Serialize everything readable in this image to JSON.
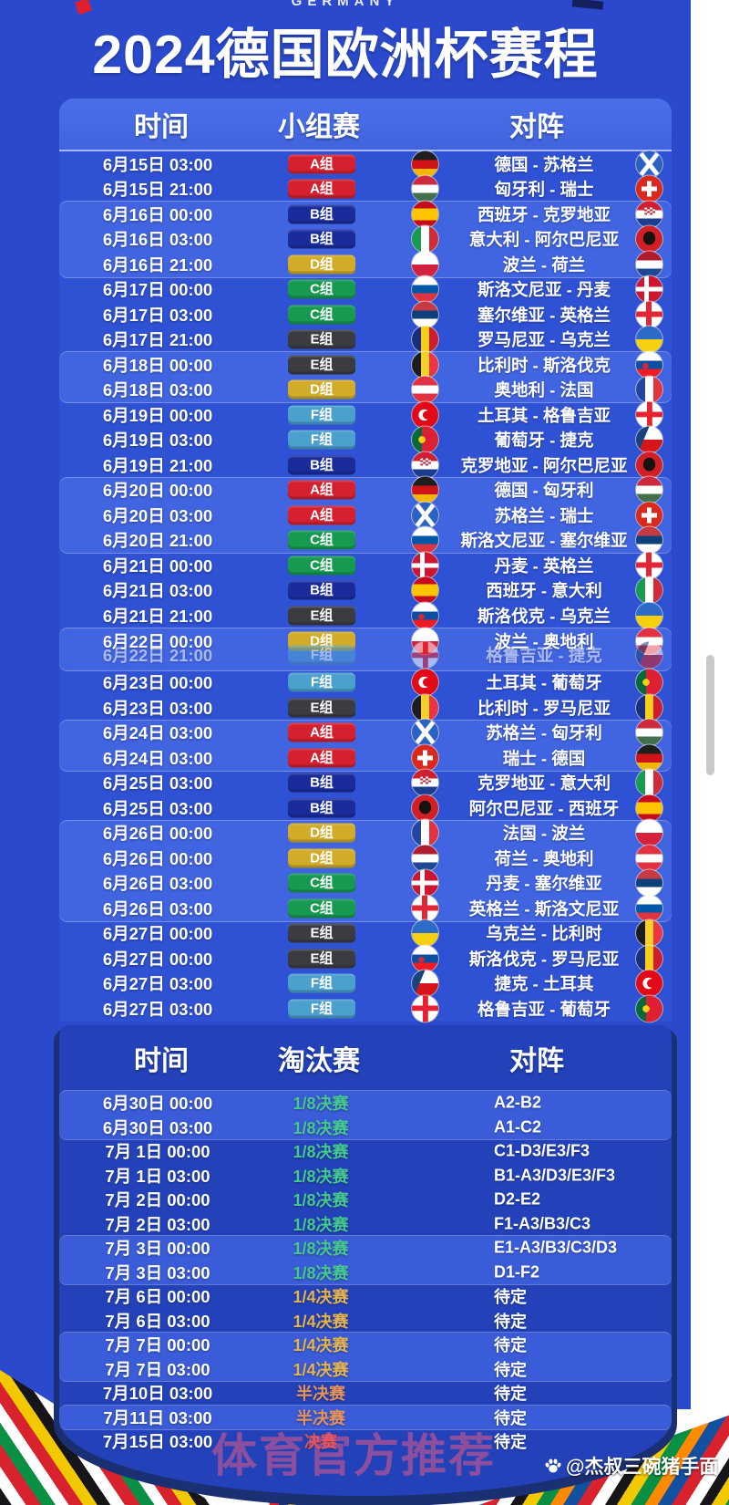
{
  "page": {
    "top_label": "GERMANY",
    "title": "2024德国欧洲杯赛程"
  },
  "theme": {
    "page_bg": "#2A49CC",
    "group_panel_bg": "#2F51D3",
    "light_band": "#4164E0",
    "header_panel": "#4A6FE8",
    "knockout_bg": "#2342BA",
    "knockout_light_band": "#3A5CD8",
    "navy_arc": "#1B2F73",
    "scrollbar": "#C9C9C9",
    "watermark_pink": "#F65C81"
  },
  "group_stage": {
    "headers": [
      "时间",
      "小组赛",
      "对阵"
    ],
    "group_colors": {
      "A组": "#D6202F",
      "B组": "#1A2C9B",
      "C组": "#169A4F",
      "D组": "#D2AC28",
      "E组": "#3A3C42",
      "F组": "#4BA0CE"
    },
    "matches": [
      {
        "time": "6月15日 03:00",
        "group": "A组",
        "match": "德国 - 苏格兰",
        "home_flag": "de",
        "away_flag": "sco",
        "band": "dark"
      },
      {
        "time": "6月15日 21:00",
        "group": "A组",
        "match": "匈牙利 - 瑞士",
        "home_flag": "hu",
        "away_flag": "ch",
        "band": "dark"
      },
      {
        "time": "6月16日 00:00",
        "group": "B组",
        "match": "西班牙 - 克罗地亚",
        "home_flag": "es",
        "away_flag": "hr",
        "band": "light"
      },
      {
        "time": "6月16日 03:00",
        "group": "B组",
        "match": "意大利 - 阿尔巴尼亚",
        "home_flag": "it",
        "away_flag": "al",
        "band": "light"
      },
      {
        "time": "6月16日 21:00",
        "group": "D组",
        "match": "波兰 - 荷兰",
        "home_flag": "pl",
        "away_flag": "nl",
        "band": "light"
      },
      {
        "time": "6月17日 00:00",
        "group": "C组",
        "match": "斯洛文尼亚 - 丹麦",
        "home_flag": "si",
        "away_flag": "dk",
        "band": "dark"
      },
      {
        "time": "6月17日 03:00",
        "group": "C组",
        "match": "塞尔维亚 - 英格兰",
        "home_flag": "rs",
        "away_flag": "en",
        "band": "dark"
      },
      {
        "time": "6月17日 21:00",
        "group": "E组",
        "match": "罗马尼亚 - 乌克兰",
        "home_flag": "ro",
        "away_flag": "ua",
        "band": "dark"
      },
      {
        "time": "6月18日 00:00",
        "group": "E组",
        "match": "比利时 - 斯洛伐克",
        "home_flag": "be",
        "away_flag": "sk",
        "band": "light"
      },
      {
        "time": "6月18日 03:00",
        "group": "D组",
        "match": "奥地利 - 法国",
        "home_flag": "at",
        "away_flag": "fr",
        "band": "light"
      },
      {
        "time": "6月19日 00:00",
        "group": "F组",
        "match": "土耳其 - 格鲁吉亚",
        "home_flag": "tr",
        "away_flag": "ge",
        "band": "dark"
      },
      {
        "time": "6月19日 03:00",
        "group": "F组",
        "match": "葡萄牙 - 捷克",
        "home_flag": "pt",
        "away_flag": "cz",
        "band": "dark"
      },
      {
        "time": "6月19日 21:00",
        "group": "B组",
        "match": "克罗地亚 - 阿尔巴尼亚",
        "home_flag": "hr",
        "away_flag": "al",
        "band": "dark"
      },
      {
        "time": "6月20日 00:00",
        "group": "A组",
        "match": "德国 - 匈牙利",
        "home_flag": "de",
        "away_flag": "hu",
        "band": "light"
      },
      {
        "time": "6月20日 03:00",
        "group": "A组",
        "match": "苏格兰 - 瑞士",
        "home_flag": "sco",
        "away_flag": "ch",
        "band": "light"
      },
      {
        "time": "6月20日 21:00",
        "group": "C组",
        "match": "斯洛文尼亚 - 塞尔维亚",
        "home_flag": "si",
        "away_flag": "rs",
        "band": "light"
      },
      {
        "time": "6月21日 00:00",
        "group": "C组",
        "match": "丹麦 - 英格兰",
        "home_flag": "dk",
        "away_flag": "en",
        "band": "dark"
      },
      {
        "time": "6月21日 03:00",
        "group": "B组",
        "match": "西班牙 - 意大利",
        "home_flag": "es",
        "away_flag": "it",
        "band": "dark"
      },
      {
        "time": "6月21日 21:00",
        "group": "E组",
        "match": "斯洛伐克 - 乌克兰",
        "home_flag": "sk",
        "away_flag": "ua",
        "band": "dark"
      },
      {
        "band": "light",
        "glitch": true,
        "main": {
          "time": "6月22日 00:00",
          "group": "D组",
          "match": "波兰 - 奥地利",
          "home_flag": "pl",
          "away_flag": "at"
        },
        "ghost": {
          "time": "6月22日 21:00",
          "group": "F组",
          "match": "格鲁吉亚 - 捷克",
          "home_flag": "ge",
          "away_flag": "cz"
        }
      },
      {
        "time": "6月23日 00:00",
        "group": "F组",
        "match": "土耳其 - 葡萄牙",
        "home_flag": "tr",
        "away_flag": "pt",
        "band": "dark"
      },
      {
        "time": "6月23日 03:00",
        "group": "E组",
        "match": "比利时 - 罗马尼亚",
        "home_flag": "be",
        "away_flag": "ro",
        "band": "dark"
      },
      {
        "time": "6月24日 03:00",
        "group": "A组",
        "match": "苏格兰 - 匈牙利",
        "home_flag": "sco",
        "away_flag": "hu",
        "band": "light"
      },
      {
        "time": "6月24日 03:00",
        "group": "A组",
        "match": "瑞士 - 德国",
        "home_flag": "ch",
        "away_flag": "de",
        "band": "light"
      },
      {
        "time": "6月25日 03:00",
        "group": "B组",
        "match": "克罗地亚 - 意大利",
        "home_flag": "hr",
        "away_flag": "it",
        "band": "dark"
      },
      {
        "time": "6月25日 03:00",
        "group": "B组",
        "match": "阿尔巴尼亚 - 西班牙",
        "home_flag": "al",
        "away_flag": "es",
        "band": "dark"
      },
      {
        "time": "6月26日 00:00",
        "group": "D组",
        "match": "法国 - 波兰",
        "home_flag": "fr",
        "away_flag": "pl",
        "band": "light"
      },
      {
        "time": "6月26日 00:00",
        "group": "D组",
        "match": "荷兰 - 奥地利",
        "home_flag": "nl",
        "away_flag": "at",
        "band": "light"
      },
      {
        "time": "6月26日 03:00",
        "group": "C组",
        "match": "丹麦 - 塞尔维亚",
        "home_flag": "dk",
        "away_flag": "rs",
        "band": "light"
      },
      {
        "time": "6月26日 03:00",
        "group": "C组",
        "match": "英格兰 - 斯洛文尼亚",
        "home_flag": "en",
        "away_flag": "si",
        "band": "light"
      },
      {
        "time": "6月27日 00:00",
        "group": "E组",
        "match": "乌克兰 - 比利时",
        "home_flag": "ua",
        "away_flag": "be",
        "band": "dark"
      },
      {
        "time": "6月27日 00:00",
        "group": "E组",
        "match": "斯洛伐克 - 罗马尼亚",
        "home_flag": "sk",
        "away_flag": "ro",
        "band": "dark"
      },
      {
        "time": "6月27日 03:00",
        "group": "F组",
        "match": "捷克 - 土耳其",
        "home_flag": "cz",
        "away_flag": "tr",
        "band": "dark"
      },
      {
        "time": "6月27日 03:00",
        "group": "F组",
        "match": "格鲁吉亚 - 葡萄牙",
        "home_flag": "ge",
        "away_flag": "pt",
        "band": "dark"
      }
    ]
  },
  "knockout": {
    "headers": [
      "时间",
      "淘汰赛",
      "对阵"
    ],
    "stage_colors": {
      "1/8决赛": "#45C98E",
      "1/4决赛": "#E3B34F",
      "半决赛": "#E8935A",
      "决赛": "#E25449"
    },
    "matches": [
      {
        "time": "6月30日 00:00",
        "stage": "1/8决赛",
        "result": "A2-B2",
        "band": "light"
      },
      {
        "time": "6月30日 03:00",
        "stage": "1/8决赛",
        "result": "A1-C2",
        "band": "light"
      },
      {
        "time": "7月 1日 00:00",
        "stage": "1/8决赛",
        "result": "C1-D3/E3/F3",
        "band": "dark"
      },
      {
        "time": "7月 1日 03:00",
        "stage": "1/8决赛",
        "result": "B1-A3/D3/E3/F3",
        "band": "dark"
      },
      {
        "time": "7月 2日 00:00",
        "stage": "1/8决赛",
        "result": "D2-E2",
        "band": "dark"
      },
      {
        "time": "7月 2日 03:00",
        "stage": "1/8决赛",
        "result": "F1-A3/B3/C3",
        "band": "dark"
      },
      {
        "time": "7月 3日 00:00",
        "stage": "1/8决赛",
        "result": "E1-A3/B3/C3/D3",
        "band": "light"
      },
      {
        "time": "7月 3日 03:00",
        "stage": "1/8决赛",
        "result": "D1-F2",
        "band": "light"
      },
      {
        "time": "7月 6日 00:00",
        "stage": "1/4决赛",
        "result": "待定",
        "band": "dark"
      },
      {
        "time": "7月 6日 03:00",
        "stage": "1/4决赛",
        "result": "待定",
        "band": "dark"
      },
      {
        "time": "7月 7日 00:00",
        "stage": "1/4决赛",
        "result": "待定",
        "band": "light"
      },
      {
        "time": "7月 7日 03:00",
        "stage": "1/4决赛",
        "result": "待定",
        "band": "light"
      },
      {
        "time": "7月10日 03:00",
        "stage": "半决赛",
        "result": "待定",
        "band": "dark"
      },
      {
        "time": "7月11日 03:00",
        "stage": "半决赛",
        "result": "待定",
        "band": "light"
      },
      {
        "time": "7月15日 03:00",
        "stage": "决赛",
        "result": "待定",
        "band": "dark"
      }
    ]
  },
  "watermarks": {
    "pink": "体育官方推荐",
    "credit": "@杰叔三碗猪手面"
  }
}
